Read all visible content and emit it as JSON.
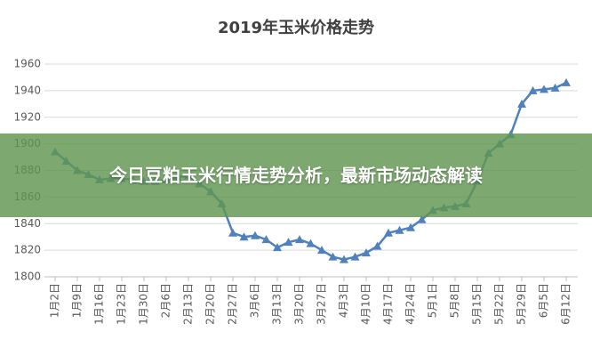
{
  "chart_data": {
    "type": "line",
    "title": "2019年玉米价格走势",
    "categories": [
      "1月2日",
      null,
      "1月9日",
      null,
      "1月16日",
      null,
      "1月23日",
      null,
      "1月30日",
      null,
      "2月6日",
      null,
      "2月13日",
      null,
      "2月20日",
      null,
      "2月27日",
      null,
      "3月6日",
      null,
      "3月13日",
      null,
      "3月20日",
      null,
      "3月27日",
      null,
      "4月3日",
      null,
      "4月10日",
      null,
      "4月17日",
      null,
      "4月24日",
      null,
      "5月1日",
      null,
      "5月8日",
      null,
      "5月15日",
      null,
      "5月22日",
      null,
      "5月29日",
      null,
      "6月5日",
      null,
      "6月12日"
    ],
    "values": [
      1894,
      1887,
      1880,
      1877,
      1873,
      1874,
      1874,
      1873,
      1872,
      1872,
      1873,
      1875,
      1876,
      1870,
      1864,
      1855,
      1833,
      1830,
      1831,
      1828,
      1822,
      1826,
      1828,
      1825,
      1820,
      1815,
      1813,
      1815,
      1818,
      1823,
      1833,
      1835,
      1837,
      1843,
      1850,
      1852,
      1853,
      1855,
      1872,
      1893,
      1900,
      1907,
      1930,
      1940,
      1941,
      1942,
      1946
    ],
    "color": "#4f81bd",
    "ylim": [
      1800,
      1960
    ],
    "yticks": [
      1800,
      1820,
      1840,
      1860,
      1880,
      1900,
      1920,
      1940,
      1960
    ],
    "grid": true
  },
  "banner": "今日豆粕玉米行情走势分析，最新市场动态解读"
}
